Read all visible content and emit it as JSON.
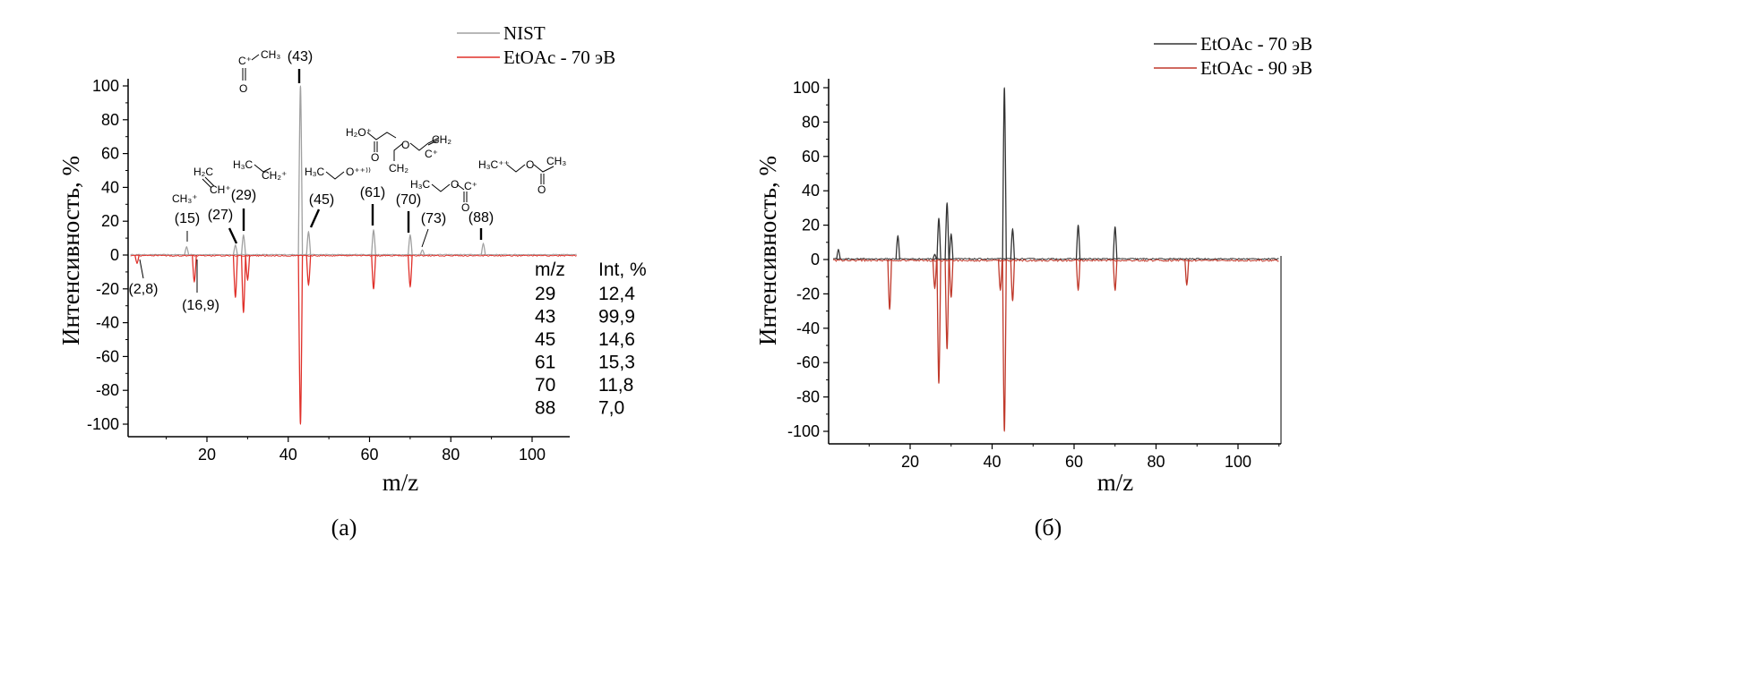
{
  "chart_data": [
    {
      "type": "line",
      "panel_label": "(a)",
      "xlabel": "m/z",
      "ylabel": "Интенсивность, %",
      "xlim": [
        0,
        111
      ],
      "ylim": [
        -105,
        105
      ],
      "x_ticks": [
        20,
        40,
        60,
        80,
        100
      ],
      "y_ticks": [
        100,
        80,
        60,
        40,
        20,
        0,
        -20,
        -40,
        -60,
        -80,
        -100
      ],
      "legend": {
        "position": "top-right",
        "entries": [
          "NIST",
          "EtOAc - 70 эВ"
        ]
      },
      "series": [
        {
          "name": "NIST",
          "color": "#a0a0a0",
          "direction": "up",
          "peaks": [
            {
              "mz": 15,
              "intensity": 5
            },
            {
              "mz": 27,
              "intensity": 6
            },
            {
              "mz": 29,
              "intensity": 12
            },
            {
              "mz": 43,
              "intensity": 100
            },
            {
              "mz": 45,
              "intensity": 14
            },
            {
              "mz": 61,
              "intensity": 15
            },
            {
              "mz": 70,
              "intensity": 12
            },
            {
              "mz": 73,
              "intensity": 3
            },
            {
              "mz": 88,
              "intensity": 7
            }
          ]
        },
        {
          "name": "EtOAc - 70 эВ",
          "color": "#e0302a",
          "direction": "down",
          "peaks": [
            {
              "mz": 2.8,
              "intensity": 5
            },
            {
              "mz": 16.9,
              "intensity": 16
            },
            {
              "mz": 27,
              "intensity": 25
            },
            {
              "mz": 29,
              "intensity": 34
            },
            {
              "mz": 30,
              "intensity": 15
            },
            {
              "mz": 43,
              "intensity": 100
            },
            {
              "mz": 45,
              "intensity": 18
            },
            {
              "mz": 61,
              "intensity": 20
            },
            {
              "mz": 70,
              "intensity": 19
            }
          ]
        }
      ],
      "peak_labels": [
        {
          "text": "(2,8)",
          "mz": 2.8,
          "side": "below"
        },
        {
          "text": "(15)",
          "mz": 15,
          "side": "above"
        },
        {
          "text": "(16,9)",
          "mz": 16.9,
          "side": "below"
        },
        {
          "text": "(27)",
          "mz": 27,
          "side": "above"
        },
        {
          "text": "(29)",
          "mz": 29,
          "side": "above"
        },
        {
          "text": "(43)",
          "mz": 43,
          "side": "above"
        },
        {
          "text": "(45)",
          "mz": 45,
          "side": "above"
        },
        {
          "text": "(61)",
          "mz": 61,
          "side": "above"
        },
        {
          "text": "(70)",
          "mz": 70,
          "side": "above"
        },
        {
          "text": "(73)",
          "mz": 73,
          "side": "above"
        },
        {
          "text": "(88)",
          "mz": 88,
          "side": "above"
        }
      ],
      "fragment_structures": [
        {
          "mz": 15,
          "formula": "CH3+"
        },
        {
          "mz": 27,
          "formula": "H2C=CH+"
        },
        {
          "mz": 29,
          "formula": "H3C-CH2+"
        },
        {
          "mz": 43,
          "formula": "O=C+-CH3"
        },
        {
          "mz": 45,
          "formula": "H3C-CH2-O+"
        },
        {
          "mz": 61,
          "formula": "H2O+-C(=O)-CH3"
        },
        {
          "mz": 70,
          "formula": "CH2=CH-O-C+=CH2"
        },
        {
          "mz": 73,
          "formula": "H3C-CH2-O-C+=O"
        },
        {
          "mz": 88,
          "formula": "H3C-CH2-O-C(=O)-CH3 +•"
        }
      ],
      "table": {
        "headers": [
          "m/z",
          "Int, %"
        ],
        "rows": [
          [
            "29",
            "12,4"
          ],
          [
            "43",
            "99,9"
          ],
          [
            "45",
            "14,6"
          ],
          [
            "61",
            "15,3"
          ],
          [
            "70",
            "11,8"
          ],
          [
            "88",
            "7,0"
          ]
        ]
      }
    },
    {
      "type": "line",
      "panel_label": "(б)",
      "xlabel": "m/z",
      "ylabel": "Интенсивность, %",
      "xlim": [
        0,
        110
      ],
      "ylim": [
        -110,
        105
      ],
      "x_ticks": [
        20,
        40,
        60,
        80,
        100
      ],
      "y_ticks": [
        100,
        80,
        60,
        40,
        20,
        0,
        -20,
        -40,
        -60,
        -80,
        -100
      ],
      "legend": {
        "position": "top-right",
        "entries": [
          "EtOAc - 70 эВ",
          "EtOAc - 90 эВ"
        ]
      },
      "series": [
        {
          "name": "EtOAc - 70 эВ",
          "color": "#333333",
          "direction": "up",
          "peaks": [
            {
              "mz": 2.5,
              "intensity": 6
            },
            {
              "mz": 17,
              "intensity": 14
            },
            {
              "mz": 26,
              "intensity": 3
            },
            {
              "mz": 27,
              "intensity": 24
            },
            {
              "mz": 29,
              "intensity": 33
            },
            {
              "mz": 30,
              "intensity": 15
            },
            {
              "mz": 43,
              "intensity": 100
            },
            {
              "mz": 45,
              "intensity": 18
            },
            {
              "mz": 61,
              "intensity": 20
            },
            {
              "mz": 70,
              "intensity": 19
            }
          ]
        },
        {
          "name": "EtOAc - 90 эВ",
          "color": "#c0392b",
          "direction": "down",
          "peaks": [
            {
              "mz": 15,
              "intensity": 29
            },
            {
              "mz": 26,
              "intensity": 17
            },
            {
              "mz": 27,
              "intensity": 72
            },
            {
              "mz": 29,
              "intensity": 52
            },
            {
              "mz": 30,
              "intensity": 22
            },
            {
              "mz": 42,
              "intensity": 18
            },
            {
              "mz": 43,
              "intensity": 100
            },
            {
              "mz": 45,
              "intensity": 24
            },
            {
              "mz": 61,
              "intensity": 18
            },
            {
              "mz": 70,
              "intensity": 18
            },
            {
              "mz": 87.5,
              "intensity": 15
            }
          ]
        }
      ]
    }
  ]
}
